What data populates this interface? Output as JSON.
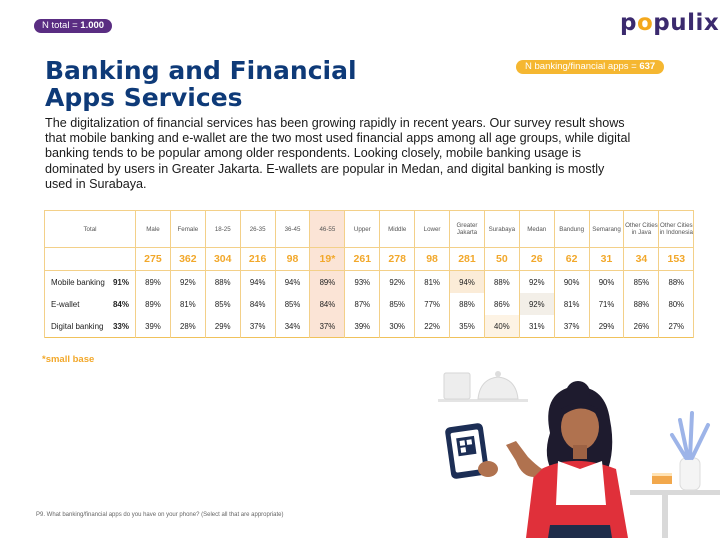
{
  "badges": {
    "total_label": "N total = ",
    "total_value": "1.000",
    "apps_label": "N banking/financial apps = ",
    "apps_value": "637"
  },
  "logo": {
    "text_p": "p",
    "text_o": "o",
    "text_rest": "pulix"
  },
  "title": "Banking and Financial Apps Services",
  "intro": "The digitalization of financial services has been growing rapidly in recent years. Our survey result shows that mobile banking and e-wallet are the two most used financial apps among all age groups, while digital banking tends to be popular among older respondents. Looking closely, mobile banking usage is dominated by users in Greater Jakarta. E-wallets are popular in Medan, and digital banking is mostly used in Surabaya.",
  "table": {
    "columns": [
      "Total",
      "Male",
      "Female",
      "18-25",
      "26-35",
      "36-45",
      "46-55",
      "Upper",
      "Middle",
      "Lower",
      "Greater Jakarta",
      "Surabaya",
      "Medan",
      "Bandung",
      "Semarang",
      "Other Cities in Java",
      "Other Cities in Indonesia"
    ],
    "n_values": [
      "275",
      "362",
      "304",
      "216",
      "98",
      "19*",
      "261",
      "278",
      "98",
      "281",
      "50",
      "26",
      "62",
      "31",
      "34",
      "153"
    ],
    "rows": [
      {
        "label": "Mobile banking",
        "total": "91%",
        "values": [
          "89%",
          "92%",
          "88%",
          "94%",
          "94%",
          "89%",
          "93%",
          "92%",
          "81%",
          "94%",
          "88%",
          "92%",
          "90%",
          "90%",
          "85%",
          "88%"
        ]
      },
      {
        "label": "E-wallet",
        "total": "84%",
        "values": [
          "89%",
          "81%",
          "85%",
          "84%",
          "85%",
          "84%",
          "87%",
          "85%",
          "77%",
          "88%",
          "86%",
          "92%",
          "81%",
          "71%",
          "88%",
          "80%"
        ]
      },
      {
        "label": "Digital banking",
        "total": "33%",
        "values": [
          "39%",
          "28%",
          "29%",
          "37%",
          "34%",
          "37%",
          "39%",
          "30%",
          "22%",
          "35%",
          "40%",
          "31%",
          "37%",
          "29%",
          "26%",
          "27%"
        ]
      }
    ]
  },
  "small_base_note": "*small base",
  "footnote": "P9. What banking/financial apps do you have on your phone? (Select all that are appropriate)",
  "colors": {
    "title": "#0e3a78",
    "accent": "#f2a82b",
    "badge_total": "#5a2d82",
    "badge_apps": "#f5b731"
  }
}
